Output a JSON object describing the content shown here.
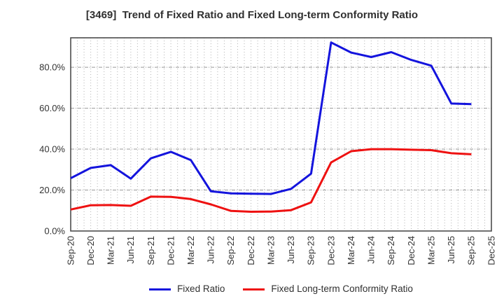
{
  "title": "[3469]  Trend of Fixed Ratio and Fixed Long-term Conformity Ratio",
  "chart_data": {
    "type": "line",
    "title": "[3469]  Trend of Fixed Ratio and Fixed Long-term Conformity Ratio",
    "categories": [
      "Sep-20",
      "Dec-20",
      "Mar-21",
      "Jun-21",
      "Sep-21",
      "Dec-21",
      "Mar-22",
      "Jun-22",
      "Sep-22",
      "Dec-22",
      "Mar-23",
      "Jun-23",
      "Sep-23",
      "Dec-23",
      "Mar-24",
      "Jun-24",
      "Sep-24",
      "Dec-24",
      "Mar-25",
      "Jun-25",
      "Sep-25",
      "Dec-25"
    ],
    "series": [
      {
        "name": "Fixed Ratio",
        "color": "#1414dd",
        "values": [
          25.8,
          30.8,
          32.2,
          25.6,
          35.5,
          38.7,
          34.6,
          19.4,
          18.4,
          18.2,
          18.1,
          20.6,
          28.0,
          92.1,
          87.2,
          85.0,
          87.4,
          83.6,
          80.8,
          62.3,
          62.0,
          null
        ]
      },
      {
        "name": "Fixed Long-term Conformity Ratio",
        "color": "#ee1111",
        "values": [
          10.5,
          12.6,
          12.7,
          12.3,
          16.8,
          16.7,
          15.6,
          13.0,
          9.8,
          9.4,
          9.5,
          10.2,
          14.0,
          33.5,
          39.0,
          40.0,
          40.0,
          39.7,
          39.5,
          38.0,
          37.5,
          null
        ]
      }
    ],
    "xlabel": "",
    "ylabel": "",
    "ylim": [
      0,
      94.4
    ],
    "yticks": [
      0,
      20,
      40,
      60,
      80
    ],
    "ytick_labels": [
      "0.0%",
      "20.0%",
      "40.0%",
      "60.0%",
      "80.0%"
    ],
    "grid": true,
    "minor_x_divisions_per_category": 3,
    "legend_position": "bottom"
  },
  "colors": {
    "background": "#ffffff",
    "plot_border": "#4d4d4d",
    "major_grid": "#999999",
    "minor_grid": "#b3b3b3",
    "tick_label": "#333333",
    "title": "#303030"
  }
}
